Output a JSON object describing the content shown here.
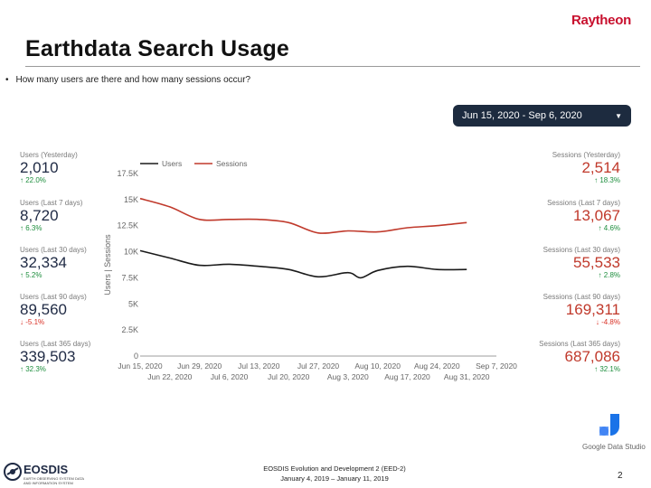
{
  "header": {
    "logo_text": "Raytheon",
    "title": "Earthdata Search Usage",
    "bullet": "How many users are there and how many sessions occur?"
  },
  "date_range": {
    "label": "Jun 15, 2020 - Sep 6, 2020",
    "icon": "caret-down-icon"
  },
  "left_stats": [
    {
      "label": "Users (Yesterday)",
      "value": "2,010",
      "change": "22.0%",
      "direction": "up"
    },
    {
      "label": "Users (Last 7 days)",
      "value": "8,720",
      "change": "6.3%",
      "direction": "up"
    },
    {
      "label": "Users (Last 30 days)",
      "value": "32,334",
      "change": "5.2%",
      "direction": "up"
    },
    {
      "label": "Users (Last 90 days)",
      "value": "89,560",
      "change": "-5.1%",
      "direction": "down"
    },
    {
      "label": "Users (Last 365 days)",
      "value": "339,503",
      "change": "32.3%",
      "direction": "up"
    }
  ],
  "right_stats": [
    {
      "label": "Sessions (Yesterday)",
      "value": "2,514",
      "change": "18.3%",
      "direction": "up"
    },
    {
      "label": "Sessions (Last 7 days)",
      "value": "13,067",
      "change": "4.6%",
      "direction": "up"
    },
    {
      "label": "Sessions (Last 30 days)",
      "value": "55,533",
      "change": "2.8%",
      "direction": "up"
    },
    {
      "label": "Sessions (Last 90 days)",
      "value": "169,311",
      "change": "-4.8%",
      "direction": "down"
    },
    {
      "label": "Sessions (Last 365 days)",
      "value": "687,086",
      "change": "32.1%",
      "direction": "up"
    }
  ],
  "chart_data": {
    "type": "line",
    "ylabel": "Users | Sessions",
    "ylim": [
      0,
      17500
    ],
    "yticks": [
      {
        "value": 0,
        "label": "0"
      },
      {
        "value": 2500,
        "label": "2.5K"
      },
      {
        "value": 5000,
        "label": "5K"
      },
      {
        "value": 7500,
        "label": "7.5K"
      },
      {
        "value": 10000,
        "label": "10K"
      },
      {
        "value": 12500,
        "label": "12.5K"
      },
      {
        "value": 15000,
        "label": "15K"
      },
      {
        "value": 17500,
        "label": "17.5K"
      }
    ],
    "xlim": [
      "2020-06-15",
      "2020-09-07"
    ],
    "xticks": [
      {
        "date": "2020-06-15",
        "label": "Jun 15, 2020",
        "row": 1
      },
      {
        "date": "2020-06-22",
        "label": "Jun 22, 2020",
        "row": 2
      },
      {
        "date": "2020-06-29",
        "label": "Jun 29, 2020",
        "row": 1
      },
      {
        "date": "2020-07-06",
        "label": "Jul 6, 2020",
        "row": 2
      },
      {
        "date": "2020-07-13",
        "label": "Jul 13, 2020",
        "row": 1
      },
      {
        "date": "2020-07-20",
        "label": "Jul 20, 2020",
        "row": 2
      },
      {
        "date": "2020-07-27",
        "label": "Jul 27, 2020",
        "row": 1
      },
      {
        "date": "2020-08-03",
        "label": "Aug 3, 2020",
        "row": 2
      },
      {
        "date": "2020-08-10",
        "label": "Aug 10, 2020",
        "row": 1
      },
      {
        "date": "2020-08-17",
        "label": "Aug 17, 2020",
        "row": 2
      },
      {
        "date": "2020-08-24",
        "label": "Aug 24, 2020",
        "row": 1
      },
      {
        "date": "2020-08-31",
        "label": "Aug 31, 2020",
        "row": 2
      },
      {
        "date": "2020-09-07",
        "label": "Sep 7, 2020",
        "row": 1
      }
    ],
    "legend_position": "top",
    "grid": false,
    "series": [
      {
        "name": "Users",
        "color": "#1a1a1a",
        "points": [
          [
            "2020-06-15",
            10100
          ],
          [
            "2020-06-22",
            9400
          ],
          [
            "2020-06-29",
            8700
          ],
          [
            "2020-07-06",
            8800
          ],
          [
            "2020-07-13",
            8600
          ],
          [
            "2020-07-20",
            8300
          ],
          [
            "2020-07-27",
            7600
          ],
          [
            "2020-08-03",
            8000
          ],
          [
            "2020-08-06",
            7500
          ],
          [
            "2020-08-10",
            8200
          ],
          [
            "2020-08-17",
            8600
          ],
          [
            "2020-08-24",
            8300
          ],
          [
            "2020-08-31",
            8300
          ]
        ]
      },
      {
        "name": "Sessions",
        "color": "#c0392b",
        "points": [
          [
            "2020-06-15",
            15100
          ],
          [
            "2020-06-22",
            14300
          ],
          [
            "2020-06-29",
            13100
          ],
          [
            "2020-07-06",
            13100
          ],
          [
            "2020-07-13",
            13100
          ],
          [
            "2020-07-20",
            12800
          ],
          [
            "2020-07-27",
            11800
          ],
          [
            "2020-08-03",
            12000
          ],
          [
            "2020-08-10",
            11900
          ],
          [
            "2020-08-17",
            12300
          ],
          [
            "2020-08-24",
            12500
          ],
          [
            "2020-08-31",
            12800
          ]
        ]
      }
    ]
  },
  "branding": {
    "google_data_studio": "Google Data Studio",
    "eosdis_name": "EOSDIS",
    "eosdis_subtitle": "EARTH OBSERVING SYSTEM DATA AND INFORMATION SYSTEM"
  },
  "footer": {
    "line1": "EOSDIS Evolution and Development 2 (EED-2)",
    "line2": "January 4, 2019 – January 11, 2019",
    "page_number": "2"
  }
}
